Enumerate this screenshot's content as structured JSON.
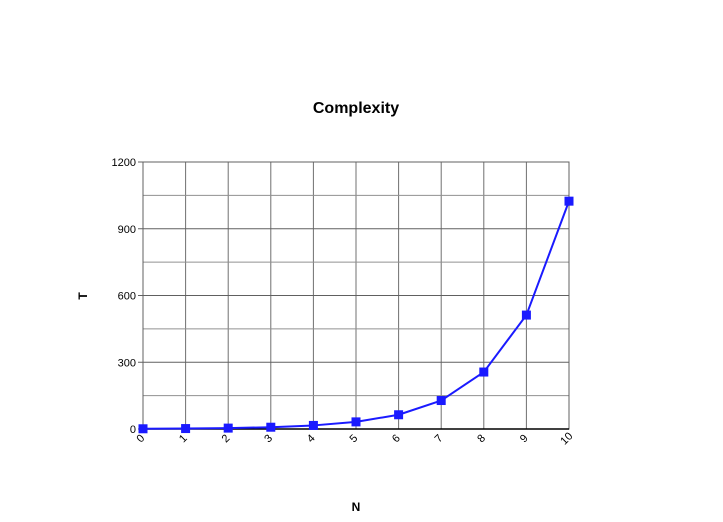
{
  "chart_data": {
    "type": "line",
    "title": "Complexity",
    "xlabel": "N",
    "ylabel": "T",
    "x": [
      0,
      1,
      2,
      3,
      4,
      5,
      6,
      7,
      8,
      9,
      10
    ],
    "x_ticks": [
      "0",
      "1",
      "2",
      "3",
      "4",
      "5",
      "6",
      "7",
      "8",
      "9",
      "10"
    ],
    "y_ticks": [
      "0",
      "300",
      "600",
      "900",
      "1200"
    ],
    "xlim": [
      0,
      10
    ],
    "ylim": [
      0,
      1200
    ],
    "y_major_step": 300,
    "y_minor_step": 150,
    "grid": true,
    "legend": "none",
    "series": [
      {
        "values": [
          1,
          2,
          4,
          8,
          16,
          32,
          64,
          128,
          256,
          512,
          1024
        ],
        "color": "#1a1aff",
        "marker": "square"
      }
    ]
  }
}
